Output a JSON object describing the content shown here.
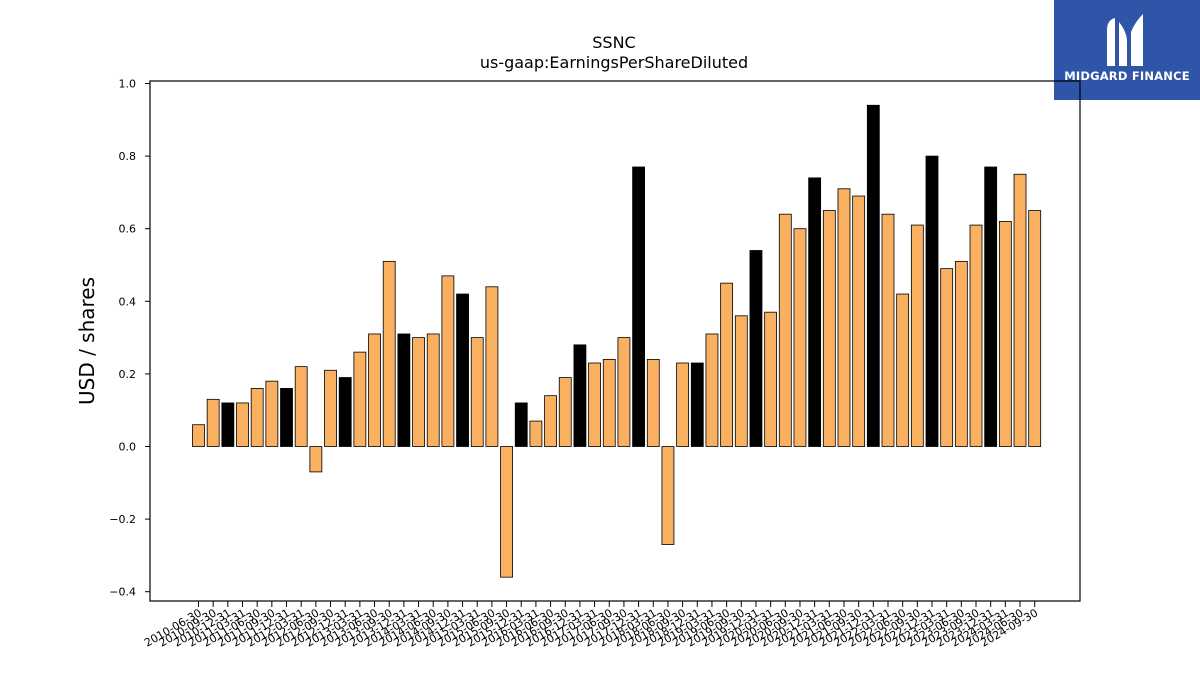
{
  "brand": {
    "name": "MIDGARD FINANCE",
    "bg_color": "#2f55a8",
    "mark_icon": "midgard-m-logo-icon"
  },
  "chart_data": {
    "type": "bar",
    "title": "SSNC",
    "subtitle": "us-gaap:EarningsPerShareDiluted",
    "ylabel": "USD / shares",
    "xlabel": "",
    "ylim": [
      -0.42,
      1.0
    ],
    "yticks": [
      -0.4,
      -0.2,
      0.0,
      0.2,
      0.4,
      0.6,
      0.8,
      1.0
    ],
    "ytick_labels": [
      "−0.4",
      "−0.2",
      "0.0",
      "0.2",
      "0.4",
      "0.6",
      "0.8",
      "1.0"
    ],
    "grid": false,
    "colors": {
      "quarter": "#f9b161",
      "annual": "#000000",
      "edge": "#000000"
    },
    "categories": [
      "2010-06-30",
      "2010-09-30",
      "2010-12-31",
      "2011-03-31",
      "2011-06-30",
      "2011-09-30",
      "2011-12-31",
      "2012-03-31",
      "2012-06-30",
      "2012-09-30",
      "2012-12-31",
      "2013-03-31",
      "2013-06-30",
      "2013-09-30",
      "2013-12-31",
      "2014-03-31",
      "2014-06-30",
      "2014-09-30",
      "2014-12-31",
      "2015-03-31",
      "2015-06-30",
      "2015-09-30",
      "2015-12-31",
      "2016-03-31",
      "2016-06-30",
      "2016-09-30",
      "2016-12-31",
      "2017-03-31",
      "2017-06-30",
      "2017-09-30",
      "2017-12-31",
      "2018-03-31",
      "2018-06-30",
      "2018-09-30",
      "2018-12-31",
      "2019-03-31",
      "2019-06-30",
      "2019-09-30",
      "2019-12-31",
      "2020-03-31",
      "2020-06-30",
      "2020-09-30",
      "2020-12-31",
      "2021-03-31",
      "2021-06-30",
      "2021-09-30",
      "2021-12-31",
      "2022-03-31",
      "2022-06-30",
      "2022-09-30",
      "2022-12-31",
      "2023-03-31",
      "2023-06-30",
      "2023-09-30",
      "2023-12-31",
      "2024-03-31",
      "2024-06-30",
      "2024-09-30"
    ],
    "values": [
      0.06,
      0.13,
      0.12,
      0.12,
      0.16,
      0.18,
      0.16,
      0.22,
      -0.07,
      0.21,
      0.19,
      0.26,
      0.31,
      0.51,
      0.31,
      0.3,
      0.31,
      0.47,
      0.42,
      0.3,
      0.44,
      -0.36,
      0.12,
      0.07,
      0.14,
      0.19,
      0.28,
      0.23,
      0.24,
      0.3,
      0.77,
      0.24,
      -0.27,
      0.23,
      0.23,
      0.31,
      0.45,
      0.36,
      0.54,
      0.37,
      0.64,
      0.6,
      0.74,
      0.65,
      0.71,
      0.69,
      0.94,
      0.64,
      0.42,
      0.61,
      0.8,
      0.49,
      0.51,
      0.61,
      0.77,
      0.62,
      0.75,
      0.65
    ],
    "annual_flags": [
      0,
      0,
      1,
      0,
      0,
      0,
      1,
      0,
      0,
      0,
      1,
      0,
      0,
      0,
      1,
      0,
      0,
      0,
      1,
      0,
      0,
      0,
      1,
      0,
      0,
      0,
      1,
      0,
      0,
      0,
      1,
      0,
      0,
      0,
      1,
      0,
      0,
      0,
      1,
      0,
      0,
      0,
      1,
      0,
      0,
      0,
      1,
      0,
      0,
      0,
      1,
      0,
      0,
      0,
      1,
      0,
      0,
      0
    ]
  }
}
